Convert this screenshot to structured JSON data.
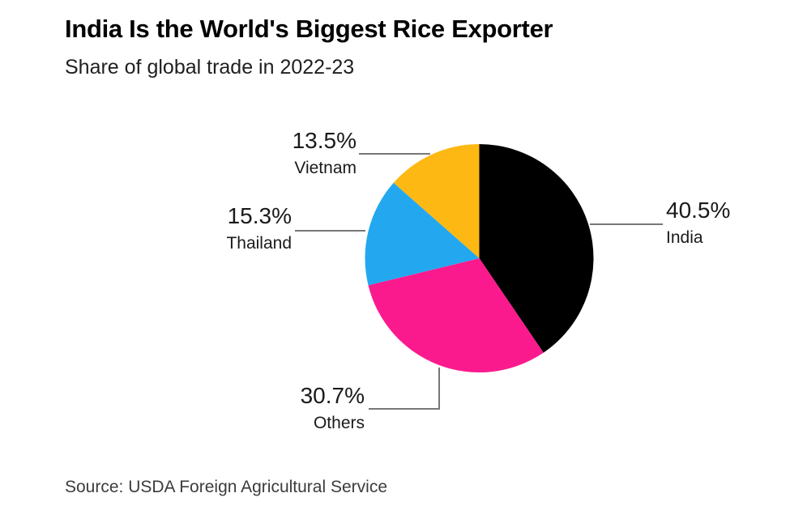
{
  "chart_data": {
    "type": "pie",
    "title": "India Is the World's Biggest Rice Exporter",
    "subtitle": "Share of global trade in 2022-23",
    "source": "Source: USDA Foreign Agricultural Service",
    "start_angle_deg": 0,
    "direction": "clockwise",
    "slices": [
      {
        "label": "India",
        "value": 40.5,
        "pct_label": "40.5%",
        "color": "#000000",
        "label_side": "right"
      },
      {
        "label": "Others",
        "value": 30.7,
        "pct_label": "30.7%",
        "color": "#FB1A8D",
        "label_side": "bottom-left"
      },
      {
        "label": "Thailand",
        "value": 15.3,
        "pct_label": "15.3%",
        "color": "#23A8F0",
        "label_side": "left"
      },
      {
        "label": "Vietnam",
        "value": 13.5,
        "pct_label": "13.5%",
        "color": "#FDB813",
        "label_side": "top-left"
      }
    ],
    "legend_position": "none",
    "grid": false,
    "background_color": "#FFFFFF",
    "leader_line_color": "#777777",
    "text_color": "#1A1A1A"
  }
}
